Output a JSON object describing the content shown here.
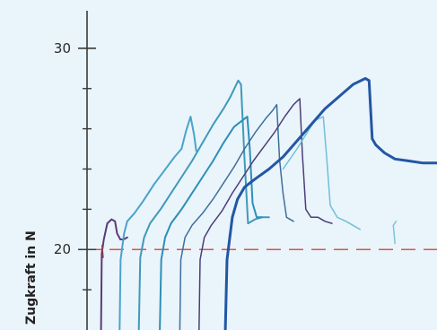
{
  "chart_data": {
    "type": "line",
    "title": "",
    "xlabel": "",
    "ylabel": "Zugkraft in N",
    "ylim": [
      16,
      32.4
    ],
    "xlim": [
      0,
      100
    ],
    "grid": false,
    "y_ticks": [
      {
        "value": 30,
        "label": "30"
      },
      {
        "value": 20,
        "label": "20"
      }
    ],
    "y_minor_ticks": [
      28,
      26,
      24,
      22,
      18
    ],
    "reference_line": {
      "y": 20,
      "style": "dashed",
      "color": "#d9534f"
    },
    "series": [
      {
        "color": "#5a3b78",
        "width": 2,
        "points": [
          [
            4,
            16
          ],
          [
            4.2,
            19.8
          ],
          [
            4.8,
            20.5
          ],
          [
            5.8,
            21.3
          ],
          [
            7,
            21.5
          ],
          [
            8,
            21.4
          ],
          [
            8.6,
            20.8
          ],
          [
            9.5,
            20.5
          ],
          [
            10.5,
            20.5
          ],
          [
            11.5,
            20.6
          ]
        ]
      },
      {
        "color": "#8b3a4a",
        "width": 1.5,
        "points": [
          [
            4.3,
            20.2
          ],
          [
            4.6,
            19.6
          ]
        ]
      },
      {
        "color": "#4aa3c9",
        "width": 2,
        "points": [
          [
            9.3,
            16
          ],
          [
            9.6,
            19.5
          ],
          [
            10.6,
            20.8
          ],
          [
            11.5,
            21.4
          ],
          [
            13.5,
            21.8
          ],
          [
            16,
            22.4
          ],
          [
            19,
            23.2
          ],
          [
            22,
            23.9
          ],
          [
            25,
            24.6
          ],
          [
            27,
            25
          ],
          [
            28.3,
            25.9
          ],
          [
            29.6,
            26.6
          ],
          [
            30.6,
            25.7
          ],
          [
            31.2,
            24.9
          ]
        ]
      },
      {
        "color": "#3f9ab8",
        "width": 2,
        "points": [
          [
            14.8,
            16
          ],
          [
            15.2,
            19.6
          ],
          [
            16.3,
            20.6
          ],
          [
            18,
            21.3
          ],
          [
            21,
            22
          ],
          [
            24,
            22.8
          ],
          [
            27,
            23.6
          ],
          [
            30,
            24.4
          ],
          [
            33,
            25.3
          ],
          [
            36,
            26.2
          ],
          [
            39,
            27
          ],
          [
            41,
            27.6
          ],
          [
            43.2,
            28.4
          ],
          [
            44,
            28.2
          ],
          [
            45,
            24.5
          ],
          [
            46,
            21.3
          ],
          [
            48,
            21.5
          ],
          [
            50,
            21.6
          ],
          [
            52,
            21.6
          ]
        ]
      },
      {
        "color": "#2c8fb8",
        "width": 2,
        "points": [
          [
            20.8,
            16
          ],
          [
            21.2,
            19.5
          ],
          [
            22.3,
            20.6
          ],
          [
            24,
            21.3
          ],
          [
            27,
            22
          ],
          [
            30,
            22.8
          ],
          [
            33,
            23.6
          ],
          [
            36,
            24.4
          ],
          [
            39,
            25.3
          ],
          [
            42,
            26.1
          ],
          [
            45.8,
            26.6
          ],
          [
            46.5,
            25
          ],
          [
            47.3,
            22.3
          ],
          [
            48.5,
            21.6
          ],
          [
            50,
            21.6
          ]
        ]
      },
      {
        "color": "#3c6f9c",
        "width": 1.5,
        "points": [
          [
            26.5,
            16
          ],
          [
            26.8,
            19.5
          ],
          [
            28,
            20.6
          ],
          [
            30,
            21.2
          ],
          [
            33,
            21.8
          ],
          [
            36,
            22.5
          ],
          [
            39,
            23.3
          ],
          [
            42,
            24.1
          ],
          [
            45,
            25
          ],
          [
            48,
            25.8
          ],
          [
            51,
            26.5
          ],
          [
            53,
            26.9
          ],
          [
            54.2,
            27.2
          ],
          [
            55,
            24.5
          ],
          [
            56,
            22.8
          ],
          [
            57,
            21.6
          ],
          [
            59,
            21.4
          ]
        ]
      },
      {
        "color": "#4b3e78",
        "width": 1.5,
        "points": [
          [
            32,
            16
          ],
          [
            32.3,
            19.5
          ],
          [
            33.5,
            20.6
          ],
          [
            35.5,
            21.2
          ],
          [
            38.5,
            21.9
          ],
          [
            41.5,
            22.8
          ],
          [
            44.5,
            23.6
          ],
          [
            47.5,
            24.4
          ],
          [
            50.5,
            25.1
          ],
          [
            53.5,
            25.8
          ],
          [
            56.5,
            26.6
          ],
          [
            59,
            27.2
          ],
          [
            60.8,
            27.5
          ],
          [
            61.5,
            24.8
          ],
          [
            62.5,
            22
          ],
          [
            64,
            21.6
          ],
          [
            66,
            21.6
          ],
          [
            68,
            21.4
          ],
          [
            70,
            21.3
          ]
        ]
      },
      {
        "color": "#6fc0d8",
        "width": 1.5,
        "points": [
          [
            56,
            24
          ],
          [
            60,
            25
          ],
          [
            65,
            26.4
          ],
          [
            67.5,
            26.6
          ],
          [
            68.5,
            24.5
          ],
          [
            69.5,
            22.2
          ],
          [
            71.5,
            21.6
          ],
          [
            74,
            21.4
          ],
          [
            76,
            21.2
          ],
          [
            78,
            21
          ]
        ]
      },
      {
        "color": "#7cc4da",
        "width": 1.5,
        "points": [
          [
            88,
            20.3
          ],
          [
            87.5,
            21.2
          ],
          [
            88.3,
            21.4
          ]
        ]
      },
      {
        "color": "#2257a3",
        "width": 3,
        "points": [
          [
            39.5,
            16
          ],
          [
            40,
            19.5
          ],
          [
            41.5,
            21.6
          ],
          [
            43,
            22.5
          ],
          [
            45,
            23.1
          ],
          [
            48,
            23.5
          ],
          [
            52,
            24
          ],
          [
            56,
            24.6
          ],
          [
            60,
            25.4
          ],
          [
            64,
            26.2
          ],
          [
            68,
            27
          ],
          [
            72,
            27.6
          ],
          [
            76,
            28.2
          ],
          [
            79.5,
            28.5
          ],
          [
            80.6,
            28.4
          ],
          [
            81.5,
            25.5
          ],
          [
            82.5,
            25.2
          ],
          [
            85,
            24.8
          ],
          [
            88,
            24.5
          ],
          [
            92,
            24.4
          ],
          [
            96,
            24.3
          ],
          [
            100,
            24.3
          ]
        ]
      }
    ]
  }
}
